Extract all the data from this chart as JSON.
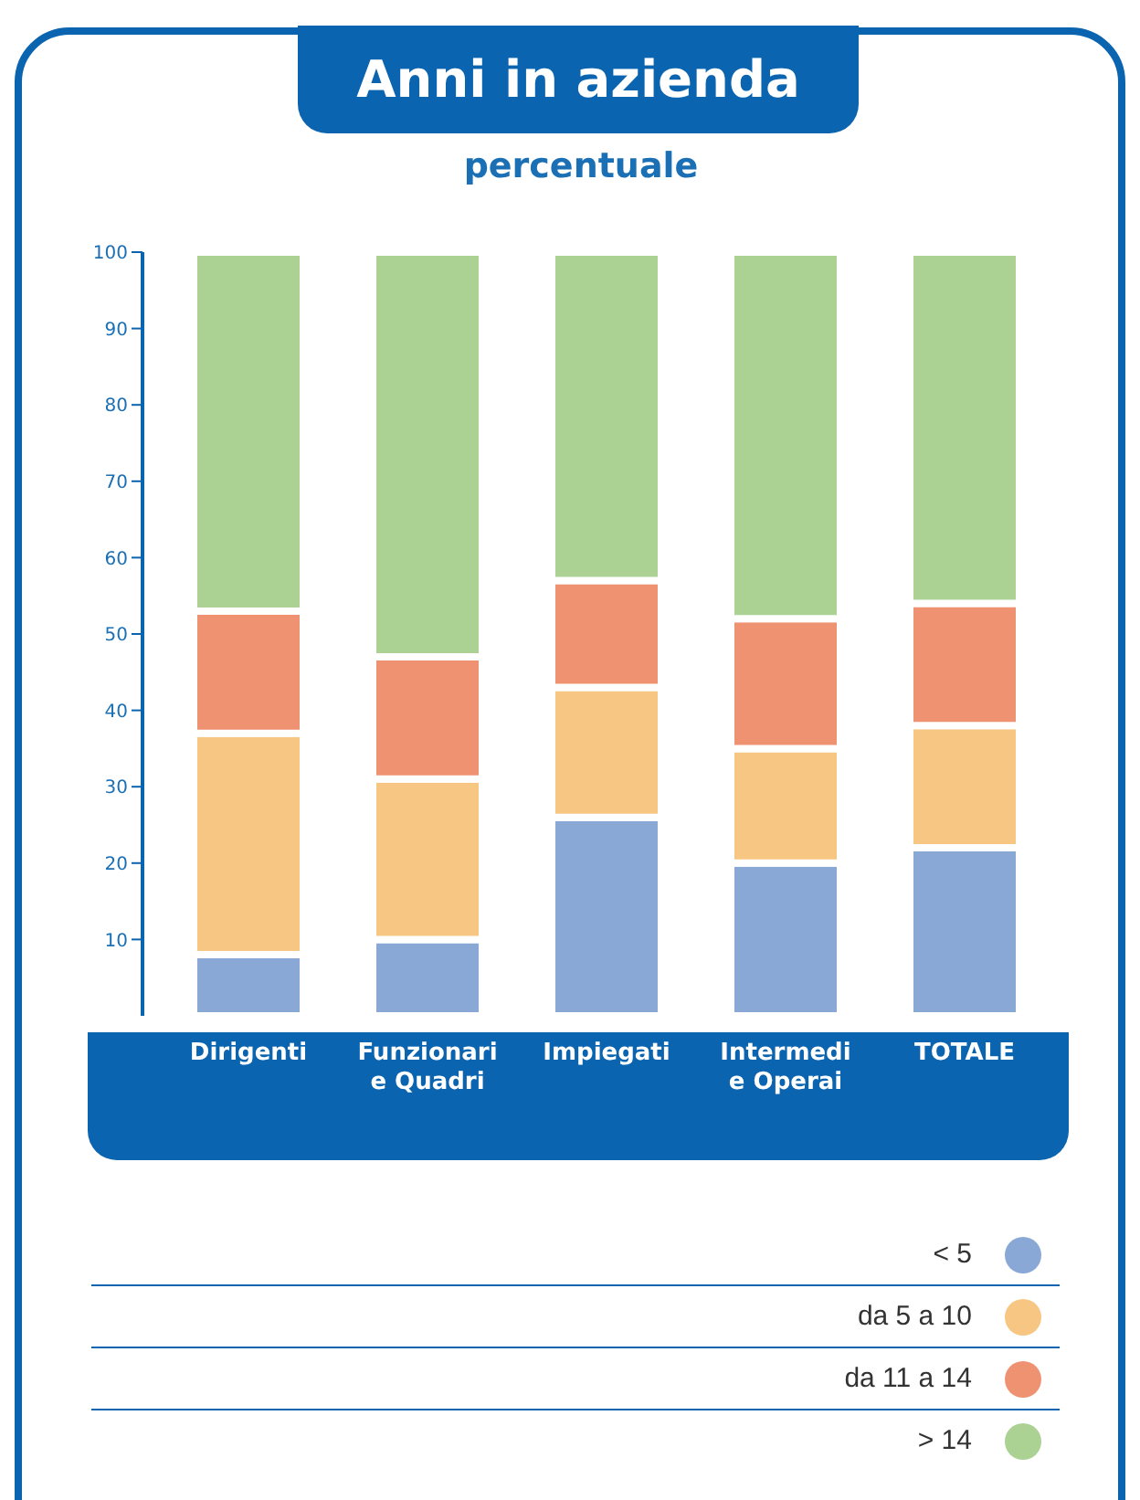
{
  "chart_data": {
    "type": "bar",
    "title": "Anni in azienda",
    "subtitle": "percentuale",
    "categories": [
      "Dirigenti",
      "Funzionari e Quadri",
      "Impiegati",
      "Intermedi e Operai",
      "TOTALE"
    ],
    "stacked": true,
    "ylim": [
      0,
      100
    ],
    "yticks": [
      10,
      20,
      30,
      40,
      50,
      60,
      70,
      80,
      90,
      100
    ],
    "legend": "bottom right",
    "series": [
      {
        "name": "< 5",
        "color": "#8aa8d6",
        "values": [
          8,
          10,
          26,
          20,
          22
        ]
      },
      {
        "name": "da 5 a 10",
        "color": "#f7c683",
        "values": [
          29,
          21,
          17,
          15,
          16
        ]
      },
      {
        "name": "da 11 a 14",
        "color": "#ef9272",
        "values": [
          16,
          16,
          14,
          17,
          16
        ]
      },
      {
        "name": "> 14",
        "color": "#abd193",
        "values": [
          47,
          53,
          43,
          48,
          46
        ]
      }
    ]
  }
}
